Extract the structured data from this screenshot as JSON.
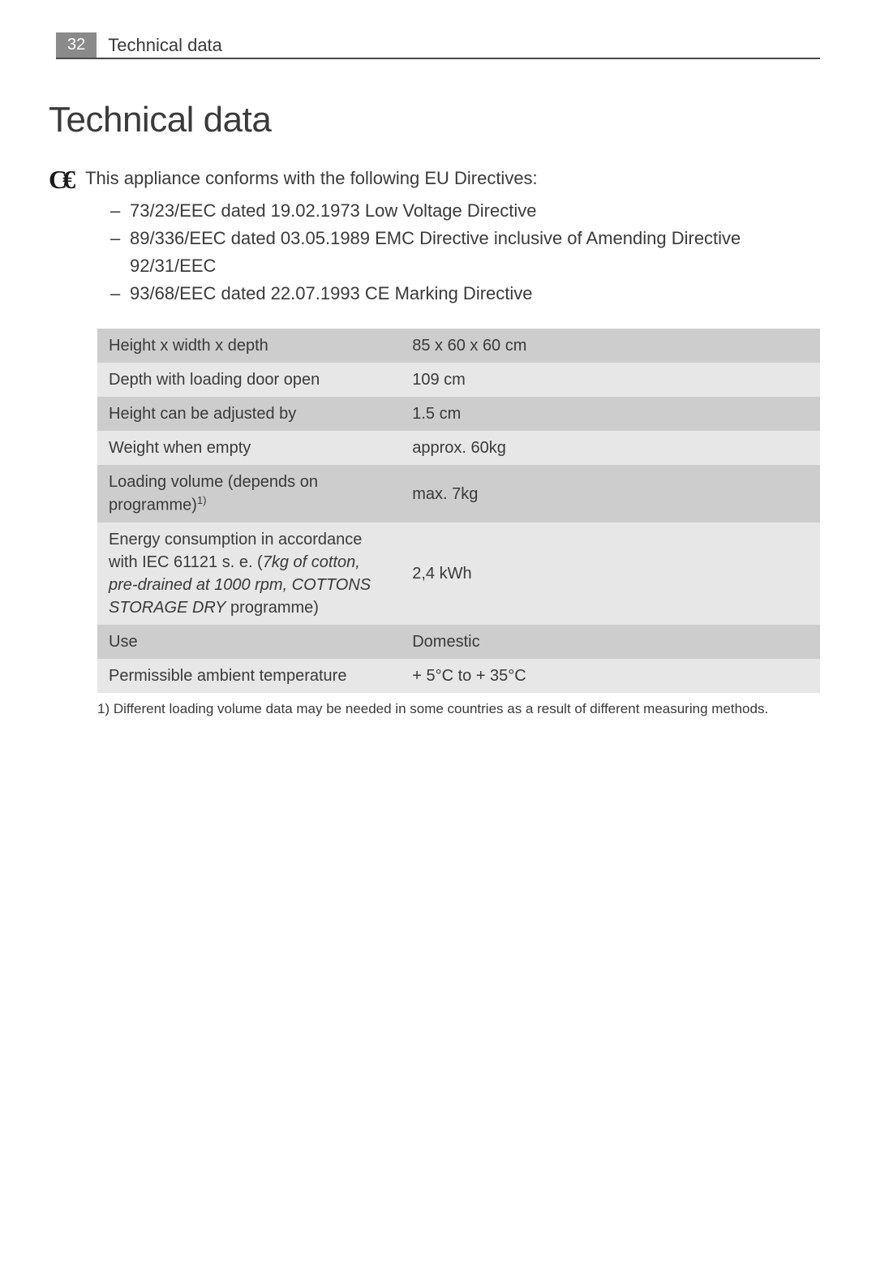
{
  "header": {
    "page_number": "32",
    "title": "Technical data"
  },
  "main_heading": "Technical data",
  "intro_text": "This appliance conforms with the following EU Directives:",
  "directives": [
    "73/23/EEC dated 19.02.1973 Low Voltage Directive",
    "89/336/EEC dated 03.05.1989 EMC Directive inclusive of Amending Directive 92/31/EEC",
    "93/68/EEC dated 22.07.1993 CE Marking Directive"
  ],
  "table": {
    "rows": [
      {
        "label": "Height x width x depth",
        "value": "85 x 60 x 60 cm"
      },
      {
        "label": "Depth with loading door open",
        "value": "109 cm"
      },
      {
        "label": "Height can be adjusted by",
        "value": "1.5 cm"
      },
      {
        "label": "Weight when empty",
        "value": "approx. 60kg"
      },
      {
        "label": "Loading volume (depends on programme)",
        "label_sup": "1)",
        "value": "max. 7kg"
      },
      {
        "label_prefix": "Energy consumption in accordance with IEC 61121 s. e. (",
        "label_italic": "7kg of cotton, pre-drained at 1000 rpm, COTTONS STORAGE DRY",
        "label_suffix": " programme)",
        "value": "2,4 kWh"
      },
      {
        "label": "Use",
        "value": "Domestic"
      },
      {
        "label": "Permissible ambient temperature",
        "value": "+ 5°C to + 35°C"
      }
    ]
  },
  "footnote": "1) Different loading volume data may be needed in some countries as a result of different measuring methods.",
  "colors": {
    "row_dark": "#cdcdcd",
    "row_light": "#e7e7e7",
    "page_num_bg": "#8a8a8a",
    "text": "#3a3a3a",
    "border": "#4a4a4a"
  }
}
